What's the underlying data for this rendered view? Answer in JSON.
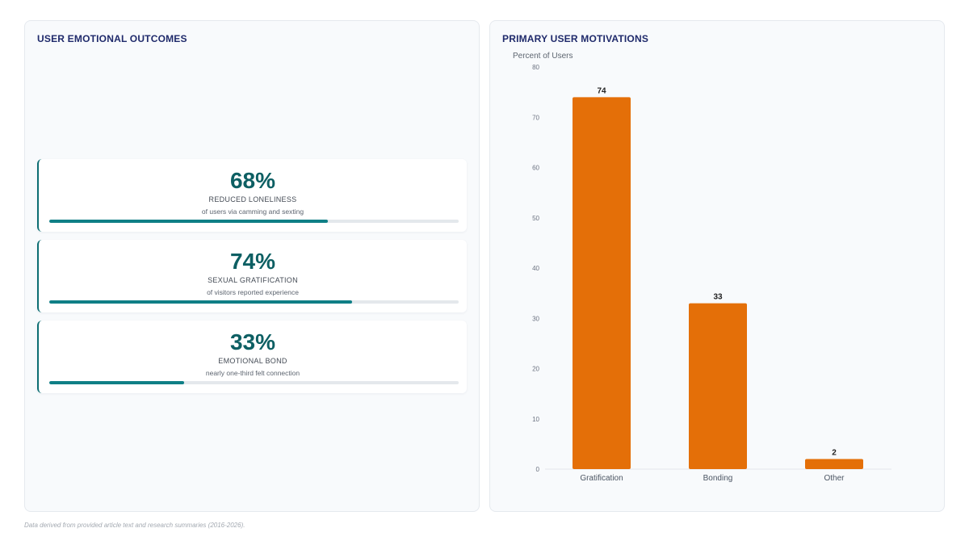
{
  "left_panel": {
    "title": "USER EMOTIONAL OUTCOMES",
    "stats": [
      {
        "value": "68%",
        "label": "REDUCED LONELINESS",
        "sub": "of users via camming and sexting",
        "progress": 68
      },
      {
        "value": "74%",
        "label": "SEXUAL GRATIFICATION",
        "sub": "of visitors reported experience",
        "progress": 74
      },
      {
        "value": "33%",
        "label": "EMOTIONAL BOND",
        "sub": "nearly one-third felt connection",
        "progress": 33
      }
    ],
    "accent_color": "#0d6e73"
  },
  "right_panel": {
    "title": "PRIMARY USER MOTIVATIONS"
  },
  "chart_data": {
    "type": "bar",
    "title": "PRIMARY USER MOTIVATIONS",
    "ylabel": "Percent of Users",
    "xlabel": "",
    "categories": [
      "Gratification",
      "Bonding",
      "Other"
    ],
    "values": [
      74,
      33,
      2
    ],
    "data_labels": [
      "74",
      "33",
      "2"
    ],
    "ylim": [
      0,
      80
    ],
    "yticks": [
      0,
      10,
      20,
      30,
      40,
      50,
      60,
      70,
      80
    ],
    "bar_color": "#e46f08",
    "grid": false,
    "legend": "none"
  },
  "footer": {
    "note": "Data derived from provided article text and research summaries (2016-2026)."
  }
}
